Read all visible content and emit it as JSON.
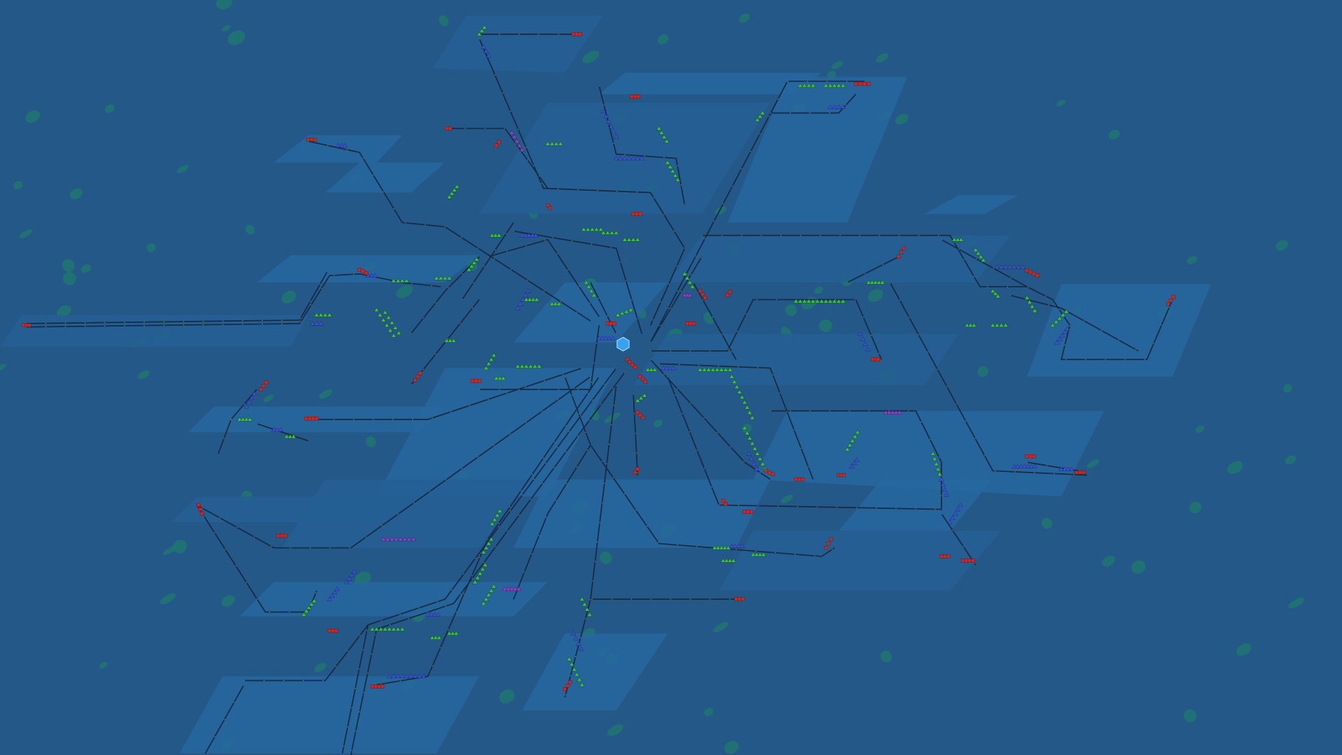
{
  "view": "map-view",
  "colors": {
    "water_background": "#235888",
    "charted_area": "#2767a0",
    "charted_area_dark": "#245f94",
    "rail": "#152a45",
    "rail_signal": "#d8b630",
    "station_green": "#3cc23a",
    "station_blue": "#3b4fd8",
    "station_red": "#c42a2a",
    "station_purple": "#9b3ad0",
    "island": "#1f7a6e",
    "player_marker": "#3aa0f0"
  },
  "player": {
    "icon": "player-marker-icon"
  }
}
